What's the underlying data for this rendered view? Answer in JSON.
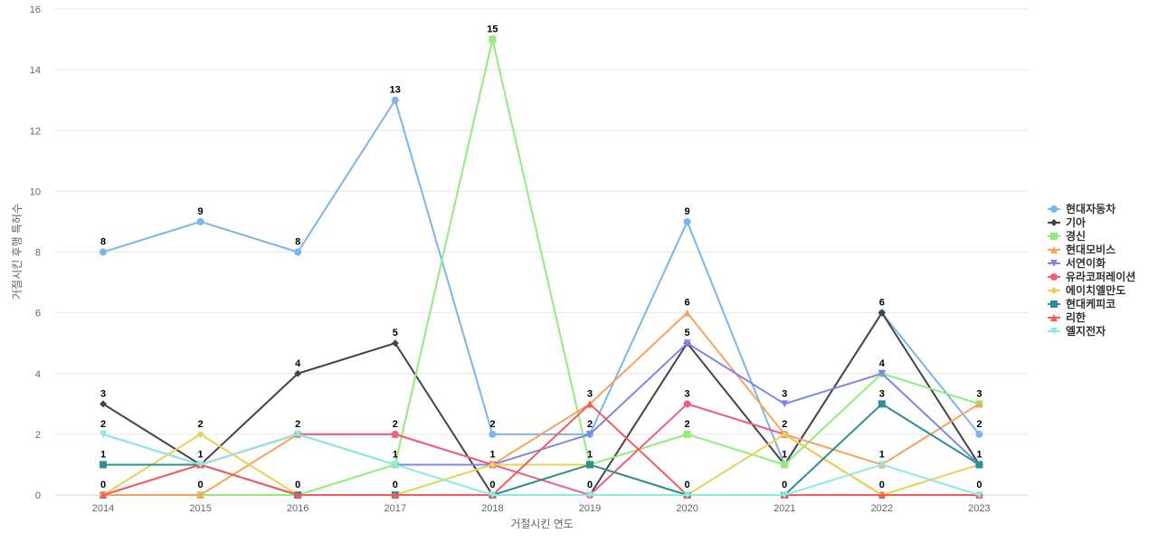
{
  "chart_data": {
    "type": "line",
    "xlabel": "거절시킨 연도",
    "ylabel": "거절시킨 후행 특허수",
    "ylim": [
      0,
      16
    ],
    "yticks": [
      0,
      2,
      4,
      6,
      8,
      10,
      12,
      14,
      16
    ],
    "x": [
      "2014",
      "2015",
      "2016",
      "2017",
      "2018",
      "2019",
      "2020",
      "2021",
      "2022",
      "2023"
    ],
    "grid": true,
    "legend_position": "right",
    "series": [
      {
        "name": "현대자동차",
        "color": "#7cb5ec",
        "marker": "circle",
        "values": [
          8,
          9,
          8,
          13,
          2,
          2,
          9,
          1,
          6,
          2
        ]
      },
      {
        "name": "기아",
        "color": "#434348",
        "marker": "diamond",
        "values": [
          3,
          1,
          4,
          5,
          0,
          0,
          5,
          1,
          6,
          1
        ]
      },
      {
        "name": "경신",
        "color": "#90ed7d",
        "marker": "square",
        "values": [
          0,
          0,
          0,
          1,
          15,
          1,
          2,
          1,
          4,
          3
        ]
      },
      {
        "name": "현대모비스",
        "color": "#f7a35c",
        "marker": "triangle",
        "values": [
          0,
          0,
          2,
          2,
          1,
          3,
          6,
          2,
          1,
          3
        ]
      },
      {
        "name": "서연이화",
        "color": "#8085e9",
        "marker": "triangle-down",
        "values": [
          2,
          1,
          2,
          1,
          1,
          2,
          5,
          3,
          4,
          1
        ]
      },
      {
        "name": "유라코퍼레이션",
        "color": "#f15c80",
        "marker": "circle",
        "values": [
          0,
          1,
          2,
          2,
          1,
          0,
          3,
          2,
          0,
          0
        ]
      },
      {
        "name": "에이치엘만도",
        "color": "#e4d354",
        "marker": "diamond",
        "values": [
          0,
          2,
          0,
          0,
          1,
          1,
          0,
          2,
          0,
          1
        ]
      },
      {
        "name": "현대케피코",
        "color": "#2b908f",
        "marker": "square",
        "values": [
          1,
          1,
          0,
          0,
          0,
          1,
          0,
          0,
          3,
          1
        ]
      },
      {
        "name": "리한",
        "color": "#f45b5b",
        "marker": "triangle",
        "values": [
          0,
          1,
          0,
          0,
          0,
          3,
          0,
          0,
          0,
          0
        ]
      },
      {
        "name": "엘지전자",
        "color": "#91e8e1",
        "marker": "triangle-down",
        "values": [
          2,
          1,
          2,
          1,
          0,
          0,
          0,
          0,
          1,
          0
        ]
      }
    ],
    "data_labels": [
      {
        "x": "2014",
        "value": 8,
        "series": "현대자동차"
      },
      {
        "x": "2014",
        "value": 3,
        "series": "기아"
      },
      {
        "x": "2014",
        "value": 2,
        "series": "서연이화"
      },
      {
        "x": "2014",
        "value": 1,
        "series": "현대케피코"
      },
      {
        "x": "2014",
        "value": 0,
        "series": "경신"
      },
      {
        "x": "2015",
        "value": 9,
        "series": "현대자동차"
      },
      {
        "x": "2015",
        "value": 2,
        "series": "에이치엘만도"
      },
      {
        "x": "2015",
        "value": 1,
        "series": "기아"
      },
      {
        "x": "2015",
        "value": 0,
        "series": "경신"
      },
      {
        "x": "2016",
        "value": 8,
        "series": "현대자동차"
      },
      {
        "x": "2016",
        "value": 4,
        "series": "기아"
      },
      {
        "x": "2016",
        "value": 2,
        "series": "현대모비스"
      },
      {
        "x": "2016",
        "value": 0,
        "series": "경신"
      },
      {
        "x": "2017",
        "value": 13,
        "series": "현대자동차"
      },
      {
        "x": "2017",
        "value": 5,
        "series": "기아"
      },
      {
        "x": "2017",
        "value": 2,
        "series": "현대모비스"
      },
      {
        "x": "2017",
        "value": 1,
        "series": "경신"
      },
      {
        "x": "2017",
        "value": 0,
        "series": "에이치엘만도"
      },
      {
        "x": "2018",
        "value": 15,
        "series": "경신"
      },
      {
        "x": "2018",
        "value": 2,
        "series": "현대자동차"
      },
      {
        "x": "2018",
        "value": 1,
        "series": "현대모비스"
      },
      {
        "x": "2018",
        "value": 0,
        "series": "기아"
      },
      {
        "x": "2019",
        "value": 3,
        "series": "현대모비스"
      },
      {
        "x": "2019",
        "value": 2,
        "series": "현대자동차"
      },
      {
        "x": "2019",
        "value": 1,
        "series": "경신"
      },
      {
        "x": "2019",
        "value": 0,
        "series": "기아"
      },
      {
        "x": "2020",
        "value": 9,
        "series": "현대자동차"
      },
      {
        "x": "2020",
        "value": 6,
        "series": "현대모비스"
      },
      {
        "x": "2020",
        "value": 5,
        "series": "기아"
      },
      {
        "x": "2020",
        "value": 3,
        "series": "유라코퍼레이션"
      },
      {
        "x": "2020",
        "value": 2,
        "series": "경신"
      },
      {
        "x": "2020",
        "value": 0,
        "series": "에이치엘만도"
      },
      {
        "x": "2021",
        "value": 3,
        "series": "서연이화"
      },
      {
        "x": "2021",
        "value": 2,
        "series": "현대모비스"
      },
      {
        "x": "2021",
        "value": 1,
        "series": "현대자동차"
      },
      {
        "x": "2021",
        "value": 0,
        "series": "현대케피코"
      },
      {
        "x": "2022",
        "value": 6,
        "series": "현대자동차"
      },
      {
        "x": "2022",
        "value": 4,
        "series": "서연이화"
      },
      {
        "x": "2022",
        "value": 3,
        "series": "현대케피코"
      },
      {
        "x": "2022",
        "value": 1,
        "series": "엘지전자"
      },
      {
        "x": "2022",
        "value": 0,
        "series": "에이치엘만도"
      },
      {
        "x": "2023",
        "value": 3,
        "series": "경신"
      },
      {
        "x": "2023",
        "value": 2,
        "series": "현대자동차"
      },
      {
        "x": "2023",
        "value": 1,
        "series": "기아"
      },
      {
        "x": "2023",
        "value": 0,
        "series": "엘지전자"
      }
    ]
  }
}
